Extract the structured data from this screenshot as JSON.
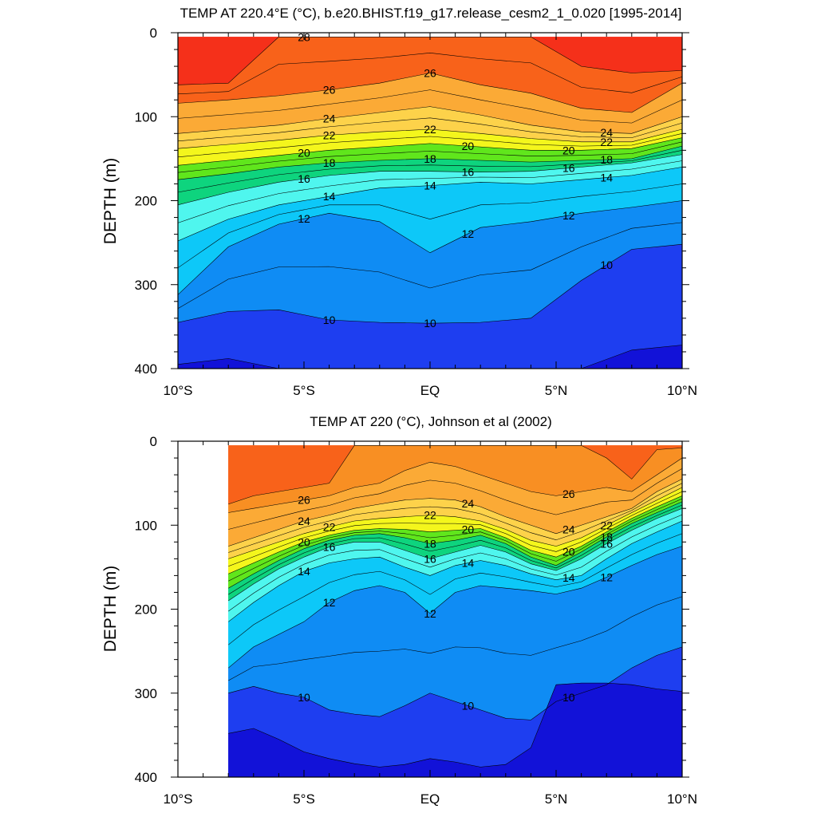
{
  "chart_data": [
    {
      "type": "heatmap",
      "title": "TEMP AT 220.4°E (°C), b.e20.BHIST.f19_g17.release_cesm2_1_0.020 [1995-2014]",
      "ylabel": "DEPTH (m)",
      "xlabel": "",
      "xlim": [
        -10,
        10
      ],
      "ylim": [
        400,
        0
      ],
      "x_ticks": [
        {
          "value": -10,
          "label": "10°S"
        },
        {
          "value": -5,
          "label": "5°S"
        },
        {
          "value": 0,
          "label": "EQ"
        },
        {
          "value": 5,
          "label": "5°N"
        },
        {
          "value": 10,
          "label": "10°N"
        }
      ],
      "y_ticks": [
        {
          "value": 0,
          "label": "0"
        },
        {
          "value": 100,
          "label": "100"
        },
        {
          "value": 200,
          "label": "200"
        },
        {
          "value": 300,
          "label": "300"
        },
        {
          "value": 400,
          "label": "400"
        }
      ],
      "data_extent": {
        "lat": [
          -10,
          10
        ],
        "depth": [
          5,
          400
        ]
      },
      "contour_levels": [
        9,
        10,
        11,
        12,
        13,
        14,
        15,
        16,
        17,
        18,
        19,
        20,
        21,
        22,
        23,
        24,
        25,
        26,
        27,
        28
      ],
      "x": [
        -10,
        -8,
        -6,
        -4,
        -2,
        0,
        2,
        4,
        6,
        8,
        10
      ],
      "isotherm_depths": [
        {
          "level": 28,
          "depth": [
            62,
            60,
            0,
            0,
            0,
            0,
            0,
            0,
            40,
            48,
            45
          ]
        },
        {
          "level": 26,
          "depth": [
            84,
            80,
            75,
            68,
            60,
            48,
            62,
            72,
            90,
            95,
            60
          ]
        },
        {
          "level": 24,
          "depth": [
            120,
            115,
            110,
            102,
            95,
            88,
            98,
            110,
            118,
            120,
            100
          ]
        },
        {
          "level": 22,
          "depth": [
            138,
            133,
            128,
            122,
            118,
            115,
            120,
            126,
            130,
            130,
            115
          ]
        },
        {
          "level": 20,
          "depth": [
            158,
            152,
            146,
            140,
            136,
            132,
            136,
            140,
            140,
            138,
            125
          ]
        },
        {
          "level": 18,
          "depth": [
            175,
            168,
            160,
            155,
            152,
            150,
            152,
            154,
            152,
            150,
            135
          ]
        },
        {
          "level": 16,
          "depth": [
            205,
            190,
            178,
            170,
            165,
            165,
            166,
            165,
            160,
            155,
            145
          ]
        },
        {
          "level": 14,
          "depth": [
            248,
            222,
            205,
            195,
            185,
            182,
            178,
            180,
            175,
            170,
            160
          ]
        },
        {
          "level": 12,
          "depth": [
            312,
            255,
            228,
            215,
            225,
            262,
            232,
            225,
            215,
            208,
            200
          ]
        },
        {
          "level": 10,
          "depth": [
            345,
            332,
            330,
            342,
            345,
            346,
            345,
            340,
            295,
            258,
            252
          ]
        },
        {
          "level": 9,
          "depth": [
            395,
            388,
            400,
            400,
            400,
            400,
            400,
            400,
            400,
            378,
            372
          ]
        }
      ],
      "contour_labels": [
        "28",
        "26",
        "26",
        "24",
        "24",
        "22",
        "22",
        "22",
        "20",
        "20",
        "20",
        "18",
        "18",
        "18",
        "16",
        "16",
        "16",
        "14",
        "14",
        "14",
        "12",
        "12",
        "12",
        "10",
        "10",
        "10"
      ]
    },
    {
      "type": "heatmap",
      "title": "TEMP AT 220 (°C), Johnson et al (2002)",
      "ylabel": "DEPTH (m)",
      "xlabel": "",
      "xlim": [
        -10,
        10
      ],
      "ylim": [
        400,
        0
      ],
      "x_ticks": [
        {
          "value": -10,
          "label": "10°S"
        },
        {
          "value": -5,
          "label": "5°S"
        },
        {
          "value": 0,
          "label": "EQ"
        },
        {
          "value": 5,
          "label": "5°N"
        },
        {
          "value": 10,
          "label": "10°N"
        }
      ],
      "y_ticks": [
        {
          "value": 0,
          "label": "0"
        },
        {
          "value": 100,
          "label": "100"
        },
        {
          "value": 200,
          "label": "200"
        },
        {
          "value": 300,
          "label": "300"
        },
        {
          "value": 400,
          "label": "400"
        }
      ],
      "data_extent": {
        "lat": [
          -8,
          10
        ],
        "depth": [
          5,
          400
        ]
      },
      "contour_levels": [
        9,
        10,
        11,
        12,
        13,
        14,
        15,
        16,
        17,
        18,
        19,
        20,
        21,
        22,
        23,
        24,
        25,
        26,
        27,
        28
      ],
      "x": [
        -8,
        -7,
        -6,
        -5,
        -4,
        -3,
        -2,
        -1,
        0,
        1,
        2,
        3,
        4,
        5,
        6,
        7,
        8,
        9,
        10
      ],
      "isotherm_depths": [
        {
          "level": 27,
          "depth": [
            75,
            65,
            60,
            55,
            50,
            0,
            0,
            0,
            0,
            0,
            0,
            0,
            0,
            0,
            0,
            20,
            45,
            10,
            8
          ]
        },
        {
          "level": 26,
          "depth": [
            85,
            80,
            75,
            70,
            65,
            55,
            50,
            35,
            25,
            30,
            40,
            50,
            60,
            65,
            60,
            55,
            60,
            40,
            20
          ]
        },
        {
          "level": 24,
          "depth": [
            125,
            115,
            105,
            95,
            88,
            80,
            75,
            70,
            68,
            70,
            78,
            90,
            100,
            110,
            100,
            90,
            80,
            60,
            45
          ]
        },
        {
          "level": 22,
          "depth": [
            140,
            130,
            120,
            110,
            102,
            95,
            92,
            90,
            88,
            90,
            95,
            105,
            118,
            125,
            115,
            100,
            85,
            70,
            55
          ]
        },
        {
          "level": 20,
          "depth": [
            158,
            145,
            132,
            120,
            112,
            106,
            104,
            105,
            108,
            106,
            104,
            115,
            130,
            138,
            125,
            108,
            92,
            78,
            65
          ]
        },
        {
          "level": 18,
          "depth": [
            175,
            158,
            142,
            128,
            118,
            112,
            110,
            115,
            122,
            118,
            112,
            122,
            138,
            148,
            132,
            114,
            98,
            85,
            72
          ]
        },
        {
          "level": 16,
          "depth": [
            190,
            170,
            152,
            138,
            126,
            120,
            120,
            130,
            140,
            132,
            124,
            132,
            146,
            154,
            140,
            122,
            106,
            92,
            80
          ]
        },
        {
          "level": 14,
          "depth": [
            215,
            192,
            172,
            155,
            145,
            140,
            138,
            150,
            160,
            148,
            142,
            148,
            158,
            165,
            160,
            140,
            122,
            108,
            95
          ]
        },
        {
          "level": 12,
          "depth": [
            270,
            245,
            230,
            215,
            192,
            178,
            172,
            180,
            205,
            180,
            172,
            175,
            178,
            182,
            175,
            162,
            148,
            135,
            125
          ]
        },
        {
          "level": 10,
          "depth": [
            300,
            292,
            300,
            305,
            320,
            325,
            328,
            315,
            300,
            310,
            320,
            330,
            332,
            310,
            300,
            290,
            270,
            255,
            245
          ]
        },
        {
          "level": 9,
          "depth": [
            348,
            342,
            355,
            370,
            378,
            384,
            388,
            385,
            378,
            382,
            388,
            385,
            365,
            290,
            288,
            288,
            290,
            295,
            298
          ]
        }
      ],
      "contour_labels": [
        "26",
        "26",
        "24",
        "24",
        "24",
        "22",
        "22",
        "22",
        "20",
        "20",
        "20",
        "18",
        "18",
        "16",
        "16",
        "16",
        "14",
        "14",
        "14",
        "12",
        "12",
        "12",
        "10",
        "10",
        "10"
      ]
    }
  ]
}
